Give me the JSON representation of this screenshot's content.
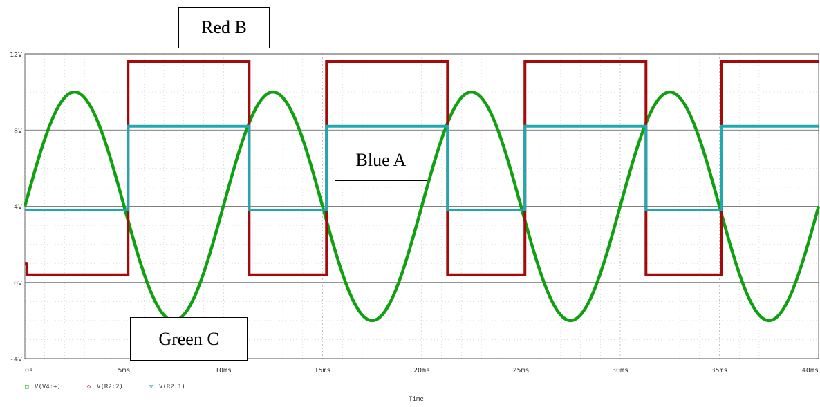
{
  "chart_data": {
    "type": "line",
    "xlabel": "Time",
    "ylabel": "",
    "xlim": [
      0,
      40
    ],
    "ylim": [
      -4,
      12
    ],
    "x_ticks": [
      "0s",
      "5ms",
      "10ms",
      "15ms",
      "20ms",
      "25ms",
      "30ms",
      "35ms",
      "40ms"
    ],
    "y_ticks": [
      "-4V",
      "0V",
      "4V",
      "8V",
      "12V"
    ],
    "grid": true,
    "legend": [
      {
        "marker": "□",
        "label": "V(V4:+)",
        "color": "#00aa00"
      },
      {
        "marker": "◇",
        "label": "V(R2:2)",
        "color": "#aa0000"
      },
      {
        "marker": "▽",
        "label": "V(R2:1)",
        "color": "#22aaaa"
      }
    ],
    "series": [
      {
        "name": "V(V4:+)",
        "color": "#11a011",
        "kind": "sine",
        "offset_V": 4,
        "amplitude_V": 6,
        "period_ms": 10,
        "x": [
          0,
          2.5,
          5,
          7.5,
          10,
          12.5,
          15,
          17.5,
          20,
          22.5,
          25,
          27.5,
          30,
          32.5,
          35,
          37.5,
          40
        ],
        "y": [
          4,
          10,
          4,
          -2,
          4,
          10,
          4,
          -2,
          4,
          10,
          4,
          -2,
          4,
          10,
          4,
          -2,
          4
        ]
      },
      {
        "name": "V(R2:2)",
        "color": "#a30a0a",
        "kind": "step",
        "x": [
          0,
          0.1,
          0.1,
          5.2,
          5.2,
          11.3,
          11.3,
          15.2,
          15.2,
          21.3,
          21.3,
          25.2,
          25.2,
          31.3,
          31.3,
          35.1,
          35.1,
          40
        ],
        "y": [
          1,
          1,
          0.4,
          0.4,
          11.6,
          11.6,
          0.4,
          0.4,
          11.6,
          11.6,
          0.4,
          0.4,
          11.6,
          11.6,
          0.4,
          0.4,
          11.6,
          11.6
        ]
      },
      {
        "name": "V(R2:1)",
        "color": "#20a8b0",
        "kind": "step",
        "x": [
          0,
          5.2,
          5.2,
          11.3,
          11.3,
          15.2,
          15.2,
          21.3,
          21.3,
          25.2,
          25.2,
          31.3,
          31.3,
          35.1,
          35.1,
          40
        ],
        "y": [
          3.8,
          3.8,
          8.2,
          8.2,
          3.8,
          3.8,
          8.2,
          8.2,
          3.8,
          3.8,
          8.2,
          8.2,
          3.8,
          3.8,
          8.2,
          8.2
        ]
      }
    ],
    "annotations": [
      {
        "text": "Red B"
      },
      {
        "text": "Blue A"
      },
      {
        "text": "Green C"
      }
    ]
  }
}
